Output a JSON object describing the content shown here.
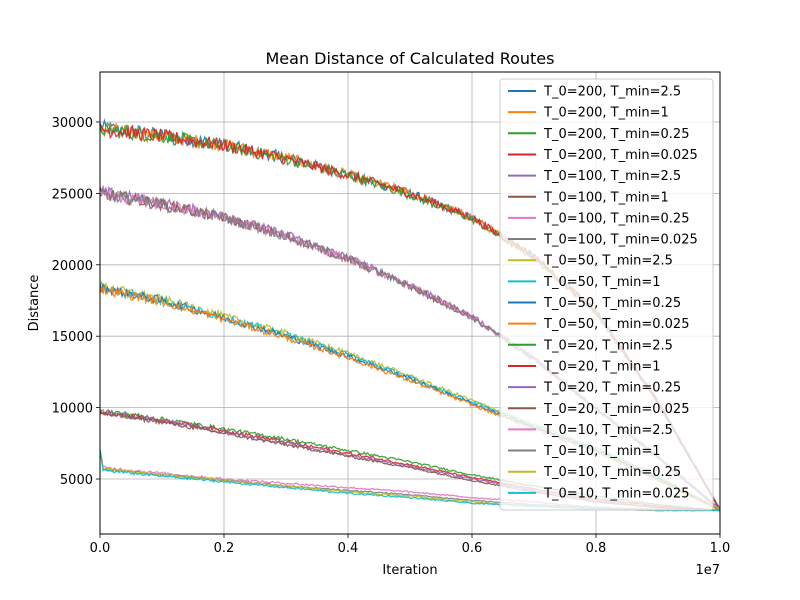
{
  "chart_data": {
    "type": "line",
    "title": "Mean Distance of Calculated Routes",
    "xlabel": "Iteration",
    "ylabel": "Distance",
    "x_offset_label": "1e7",
    "x_scale": 10000000,
    "xlim": [
      0,
      1.0
    ],
    "ylim": [
      1150,
      33500
    ],
    "xticks": [
      0.0,
      0.2,
      0.4,
      0.6,
      0.8,
      1.0
    ],
    "xtick_labels": [
      "0.0",
      "0.2",
      "0.4",
      "0.6",
      "0.8",
      "1.0"
    ],
    "yticks": [
      5000,
      10000,
      15000,
      20000,
      25000,
      30000
    ],
    "ytick_labels": [
      "5000",
      "10000",
      "15000",
      "20000",
      "25000",
      "30000"
    ],
    "grid": true,
    "legend_position": "upper-right",
    "series": [
      {
        "name": "T_0=200, T_min=2.5",
        "color": "#1f77b4",
        "x": [
          0,
          0.1,
          0.2,
          0.3,
          0.4,
          0.5,
          0.6,
          0.7,
          0.8,
          0.9,
          1.0
        ],
        "y": [
          29600,
          29100,
          28400,
          27500,
          26300,
          25000,
          23300,
          20600,
          16800,
          10500,
          2900
        ]
      },
      {
        "name": "T_0=200, T_min=1",
        "color": "#ff7f0e",
        "x": [
          0,
          0.1,
          0.2,
          0.3,
          0.4,
          0.5,
          0.6,
          0.7,
          0.8,
          0.9,
          1.0
        ],
        "y": [
          29500,
          29000,
          28400,
          27500,
          26300,
          25000,
          23300,
          20600,
          16700,
          10400,
          2800
        ]
      },
      {
        "name": "T_0=200, T_min=0.25",
        "color": "#2ca02c",
        "x": [
          0,
          0.1,
          0.2,
          0.3,
          0.4,
          0.5,
          0.6,
          0.7,
          0.8,
          0.9,
          1.0
        ],
        "y": [
          29500,
          29000,
          28300,
          27400,
          26300,
          24900,
          23200,
          20500,
          16600,
          10300,
          2800
        ]
      },
      {
        "name": "T_0=200, T_min=0.025",
        "color": "#d62728",
        "x": [
          0,
          0.1,
          0.2,
          0.3,
          0.4,
          0.5,
          0.6,
          0.7,
          0.8,
          0.9,
          1.0
        ],
        "y": [
          29500,
          29000,
          28400,
          27400,
          26300,
          25000,
          23300,
          20600,
          16700,
          10400,
          2800
        ]
      },
      {
        "name": "T_0=100, T_min=2.5",
        "color": "#9467bd",
        "x": [
          0,
          0.1,
          0.2,
          0.3,
          0.4,
          0.5,
          0.6,
          0.7,
          0.8,
          0.9,
          1.0
        ],
        "y": [
          25100,
          24300,
          23400,
          22100,
          20500,
          18600,
          16400,
          13500,
          10000,
          6600,
          2900
        ]
      },
      {
        "name": "T_0=100, T_min=1",
        "color": "#8c564b",
        "x": [
          0,
          0.1,
          0.2,
          0.3,
          0.4,
          0.5,
          0.6,
          0.7,
          0.8,
          0.9,
          1.0
        ],
        "y": [
          25000,
          24200,
          23300,
          22000,
          20400,
          18500,
          16300,
          13400,
          9900,
          6500,
          2800
        ]
      },
      {
        "name": "T_0=100, T_min=0.25",
        "color": "#e377c2",
        "x": [
          0,
          0.1,
          0.2,
          0.3,
          0.4,
          0.5,
          0.6,
          0.7,
          0.8,
          0.9,
          1.0
        ],
        "y": [
          25000,
          24200,
          23300,
          22000,
          20400,
          18500,
          16300,
          13400,
          9900,
          6500,
          2800
        ]
      },
      {
        "name": "T_0=100, T_min=0.025",
        "color": "#7f7f7f",
        "x": [
          0,
          0.1,
          0.2,
          0.3,
          0.4,
          0.5,
          0.6,
          0.7,
          0.8,
          0.9,
          1.0
        ],
        "y": [
          25000,
          24200,
          23300,
          22000,
          20400,
          18500,
          16300,
          13400,
          9900,
          6500,
          2800
        ]
      },
      {
        "name": "T_0=50, T_min=2.5",
        "color": "#bcbd22",
        "x": [
          0,
          0.1,
          0.2,
          0.3,
          0.4,
          0.5,
          0.6,
          0.7,
          0.8,
          0.9,
          1.0
        ],
        "y": [
          18500,
          17600,
          16400,
          15200,
          13800,
          12200,
          10500,
          8800,
          7200,
          5200,
          2900
        ]
      },
      {
        "name": "T_0=50, T_min=1",
        "color": "#17becf",
        "x": [
          0,
          0.1,
          0.2,
          0.3,
          0.4,
          0.5,
          0.6,
          0.7,
          0.8,
          0.9,
          1.0
        ],
        "y": [
          18400,
          17500,
          16300,
          15100,
          13700,
          12100,
          10400,
          8700,
          7100,
          5100,
          2800
        ]
      },
      {
        "name": "T_0=50, T_min=0.25",
        "color": "#1f77b4",
        "x": [
          0,
          0.1,
          0.2,
          0.3,
          0.4,
          0.5,
          0.6,
          0.7,
          0.8,
          0.9,
          1.0
        ],
        "y": [
          18400,
          17500,
          16300,
          15000,
          13600,
          12000,
          10300,
          8600,
          7000,
          5000,
          2800
        ]
      },
      {
        "name": "T_0=50, T_min=0.025",
        "color": "#ff7f0e",
        "x": [
          0,
          0.1,
          0.2,
          0.3,
          0.4,
          0.5,
          0.6,
          0.7,
          0.8,
          0.9,
          1.0
        ],
        "y": [
          18300,
          17400,
          16200,
          14900,
          13500,
          11900,
          10200,
          8500,
          6900,
          4900,
          2800
        ]
      },
      {
        "name": "T_0=20, T_min=2.5",
        "color": "#2ca02c",
        "x": [
          0,
          0.1,
          0.2,
          0.3,
          0.4,
          0.5,
          0.6,
          0.7,
          0.8,
          0.9,
          1.0
        ],
        "y": [
          9800,
          9200,
          8500,
          7800,
          7000,
          6200,
          5300,
          4500,
          3800,
          3200,
          2800
        ]
      },
      {
        "name": "T_0=20, T_min=1",
        "color": "#d62728",
        "x": [
          0,
          0.1,
          0.2,
          0.3,
          0.4,
          0.5,
          0.6,
          0.7,
          0.8,
          0.9,
          1.0
        ],
        "y": [
          9700,
          9100,
          8400,
          7600,
          6800,
          6000,
          5100,
          4300,
          3600,
          3100,
          2800
        ]
      },
      {
        "name": "T_0=20, T_min=0.25",
        "color": "#9467bd",
        "x": [
          0,
          0.1,
          0.2,
          0.3,
          0.4,
          0.5,
          0.6,
          0.7,
          0.8,
          0.9,
          1.0
        ],
        "y": [
          9700,
          9100,
          8300,
          7500,
          6700,
          5900,
          5000,
          4200,
          3500,
          3000,
          2800
        ]
      },
      {
        "name": "T_0=20, T_min=0.025",
        "color": "#8c564b",
        "x": [
          0,
          0.1,
          0.2,
          0.3,
          0.4,
          0.5,
          0.6,
          0.7,
          0.8,
          0.9,
          1.0
        ],
        "y": [
          9600,
          9000,
          8200,
          7400,
          6600,
          5800,
          4900,
          4100,
          3400,
          3000,
          2800
        ]
      },
      {
        "name": "T_0=10, T_min=2.5",
        "color": "#e377c2",
        "x": [
          0,
          0.005,
          0.1,
          0.2,
          0.3,
          0.4,
          0.5,
          0.6,
          0.7,
          0.8,
          0.9,
          1.0
        ],
        "y": [
          7000,
          5800,
          5400,
          5000,
          4700,
          4400,
          4100,
          3700,
          3400,
          3000,
          2900,
          2800
        ]
      },
      {
        "name": "T_0=10, T_min=1",
        "color": "#7f7f7f",
        "x": [
          0,
          0.005,
          0.1,
          0.2,
          0.3,
          0.4,
          0.5,
          0.6,
          0.7,
          0.8,
          0.9,
          1.0
        ],
        "y": [
          7000,
          5700,
          5300,
          4900,
          4500,
          4200,
          3900,
          3500,
          3200,
          3000,
          2800,
          2800
        ]
      },
      {
        "name": "T_0=10, T_min=0.25",
        "color": "#bcbd22",
        "x": [
          0,
          0.005,
          0.1,
          0.2,
          0.3,
          0.4,
          0.5,
          0.6,
          0.7,
          0.8,
          0.9,
          1.0
        ],
        "y": [
          7000,
          5700,
          5300,
          4900,
          4500,
          4100,
          3800,
          3400,
          3100,
          2900,
          2800,
          2800
        ]
      },
      {
        "name": "T_0=10, T_min=0.025",
        "color": "#17becf",
        "x": [
          0,
          0.005,
          0.1,
          0.2,
          0.3,
          0.4,
          0.5,
          0.6,
          0.7,
          0.8,
          0.9,
          1.0
        ],
        "y": [
          7000,
          5600,
          5200,
          4800,
          4400,
          4000,
          3700,
          3300,
          3100,
          2900,
          2800,
          2800
        ]
      }
    ]
  }
}
